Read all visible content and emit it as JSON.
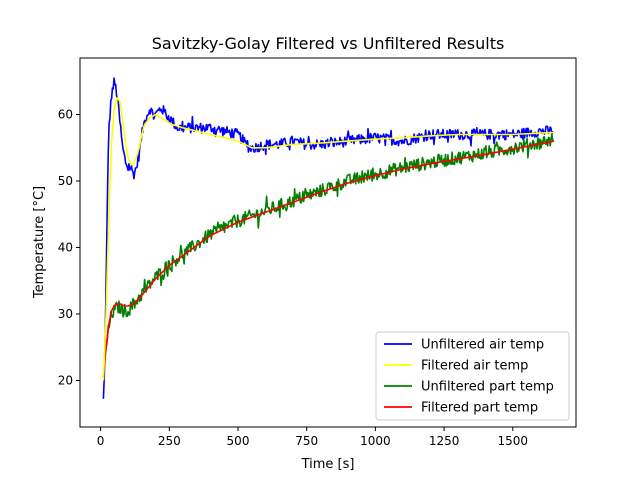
{
  "chart_data": {
    "type": "line",
    "title": "Savitzky-Golay Filtered vs Unfiltered Results",
    "xlabel": "Time [s]",
    "ylabel": "Temperature [°C]",
    "xlim": [
      -75,
      1730
    ],
    "ylim": [
      13,
      68.5
    ],
    "xticks": [
      0,
      250,
      500,
      750,
      1000,
      1250,
      1500
    ],
    "yticks": [
      20,
      30,
      40,
      50,
      60
    ],
    "xtick_labels": [
      "0",
      "250",
      "500",
      "750",
      "1000",
      "1250",
      "1500"
    ],
    "ytick_labels": [
      "20",
      "30",
      "40",
      "50",
      "60"
    ],
    "grid": false,
    "legend_position": "lower-right",
    "series": [
      {
        "name": "Unfiltered air temp",
        "color": "#0000ff",
        "noise": 0.8,
        "x": [
          10,
          15,
          20,
          25,
          30,
          40,
          50,
          60,
          70,
          80,
          90,
          100,
          110,
          120,
          130,
          140,
          150,
          160,
          170,
          180,
          190,
          200,
          220,
          240,
          260,
          280,
          300,
          330,
          360,
          400,
          450,
          500,
          540,
          560,
          600,
          650,
          700,
          750,
          800,
          900,
          1000,
          1100,
          1200,
          1300,
          1400,
          1500,
          1600,
          1650
        ],
        "y": [
          17,
          22,
          35,
          48,
          58,
          63,
          65,
          63,
          59,
          55,
          53,
          52,
          52,
          51,
          52,
          54,
          57,
          59,
          60,
          61,
          60,
          60,
          61,
          60,
          59,
          58,
          58,
          58,
          58,
          58,
          57.5,
          57,
          55,
          55,
          55.5,
          55.5,
          56,
          55.5,
          55.5,
          56,
          56.5,
          56,
          57,
          57,
          57,
          57,
          57.5,
          57.5
        ]
      },
      {
        "name": "Filtered air temp",
        "color": "#ffff00",
        "noise": 0,
        "x": [
          10,
          20,
          30,
          40,
          50,
          60,
          70,
          80,
          90,
          100,
          110,
          120,
          130,
          140,
          150,
          160,
          180,
          200,
          220,
          240,
          260,
          300,
          350,
          400,
          450,
          500,
          550,
          600,
          700,
          800,
          900,
          1000,
          1100,
          1200,
          1300,
          1400,
          1500,
          1600,
          1650
        ],
        "y": [
          20,
          30,
          45,
          56,
          61,
          62.5,
          62,
          59,
          56,
          53.5,
          52.5,
          52.5,
          53.5,
          55,
          57,
          58.5,
          59.5,
          60,
          59.5,
          59,
          58.5,
          58,
          57.5,
          57,
          56.5,
          56,
          55,
          55,
          55.5,
          55.7,
          56,
          56.3,
          56.5,
          56.8,
          57,
          57,
          57,
          57.2,
          57.3
        ]
      },
      {
        "name": "Unfiltered part temp",
        "color": "#008000",
        "noise": 1.0,
        "x": [
          10,
          20,
          30,
          40,
          50,
          60,
          70,
          80,
          90,
          100,
          120,
          150,
          200,
          250,
          300,
          400,
          500,
          600,
          700,
          800,
          900,
          1000,
          1100,
          1200,
          1300,
          1400,
          1500,
          1600,
          1650
        ],
        "y": [
          20,
          25,
          28,
          30,
          30.5,
          31,
          31,
          30.5,
          30.5,
          30.5,
          31.5,
          33,
          35.5,
          37.5,
          39,
          42,
          44,
          45.5,
          47,
          48.5,
          50,
          51,
          52,
          52.8,
          53.5,
          54.2,
          55,
          55.8,
          56.3
        ]
      },
      {
        "name": "Filtered part temp",
        "color": "#ff0000",
        "noise": 0,
        "x": [
          10,
          20,
          30,
          40,
          50,
          60,
          70,
          80,
          90,
          100,
          120,
          150,
          200,
          250,
          300,
          400,
          500,
          600,
          700,
          800,
          900,
          1000,
          1100,
          1200,
          1300,
          1400,
          1500,
          1600,
          1650
        ],
        "y": [
          20.5,
          25,
          28.5,
          30.5,
          31.2,
          31.5,
          31.5,
          31.3,
          31.2,
          31.2,
          31.5,
          32.8,
          35.3,
          37.3,
          38.8,
          41.8,
          43.8,
          45.3,
          46.8,
          48.3,
          49.7,
          50.8,
          51.8,
          52.6,
          53.3,
          54,
          54.8,
          55.6,
          56
        ]
      }
    ]
  }
}
